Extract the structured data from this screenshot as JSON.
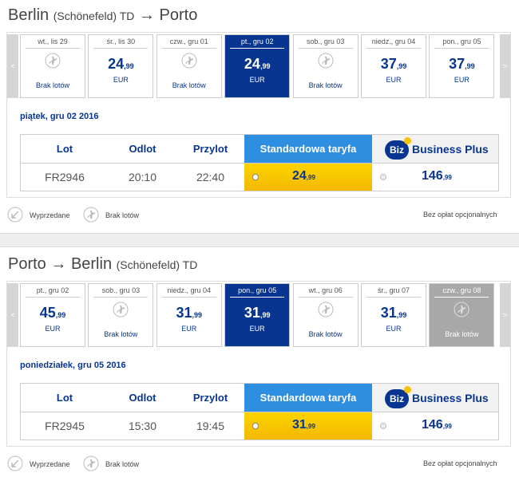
{
  "sections": [
    {
      "title": [
        {
          "text": "Berlin"
        },
        {
          "text": "(Schönefeld) TD",
          "small": true
        },
        {
          "text": "→"
        },
        {
          "text": "Porto"
        }
      ],
      "prev": "<",
      "next": ">",
      "days": [
        {
          "label": "wt., lis 29",
          "status": "Brak lotów"
        },
        {
          "label": "śr., lis 30",
          "price": "24",
          "cents": ",99",
          "currency": "EUR"
        },
        {
          "label": "czw., gru 01",
          "status": "Brak lotów"
        },
        {
          "label": "pt., gru 02",
          "price": "24",
          "cents": ",99",
          "currency": "EUR",
          "selected": true
        },
        {
          "label": "sob., gru 03",
          "status": "Brak lotów"
        },
        {
          "label": "niedz., gru 04",
          "price": "37",
          "cents": ",99",
          "currency": "EUR"
        },
        {
          "label": "pon., gru 05",
          "price": "37",
          "cents": ",99",
          "currency": "EUR"
        }
      ],
      "date": "piątek, gru 02 2016",
      "table": {
        "headers": [
          "Lot",
          "Odlot",
          "Przylot",
          "Standardowa taryfa"
        ],
        "business": {
          "badge": "Biz",
          "label": "Business Plus"
        },
        "row": {
          "flight": "FR2946",
          "departure": "20:10",
          "arrival": "22:40",
          "standard": {
            "price": "24",
            "cents": ",99"
          },
          "business": {
            "price": "146",
            "cents": ",99"
          }
        }
      },
      "legend": {
        "sold_out": "Wyprzedane",
        "no_flights": "Brak lotów",
        "note": "Bez opłat opcjonalnych"
      }
    },
    {
      "title": [
        {
          "text": "Porto"
        },
        {
          "text": "→"
        },
        {
          "text": "Berlin"
        },
        {
          "text": "(Schönefeld) TD",
          "small": true
        }
      ],
      "prev": "<",
      "next": ">",
      "days": [
        {
          "label": "pt., gru 02",
          "price": "45",
          "cents": ",99",
          "currency": "EUR"
        },
        {
          "label": "sob., gru 03",
          "status": "Brak lotów"
        },
        {
          "label": "niedz., gru 04",
          "price": "31",
          "cents": ",99",
          "currency": "EUR"
        },
        {
          "label": "pon., gru 05",
          "price": "31",
          "cents": ",99",
          "currency": "EUR",
          "selected": true
        },
        {
          "label": "wt., gru 06",
          "status": "Brak lotów"
        },
        {
          "label": "śr., gru 07",
          "price": "31",
          "cents": ",99",
          "currency": "EUR"
        },
        {
          "label": "czw., gru 08",
          "status": "Brak lotów",
          "disabled": true
        }
      ],
      "date": "poniedziałek, gru 05 2016",
      "table": {
        "headers": [
          "Lot",
          "Odlot",
          "Przylot",
          "Standardowa taryfa"
        ],
        "business": {
          "badge": "Biz",
          "label": "Business Plus"
        },
        "row": {
          "flight": "FR2945",
          "departure": "15:30",
          "arrival": "19:45",
          "standard": {
            "price": "31",
            "cents": ",99"
          },
          "business": {
            "price": "146",
            "cents": ",99"
          }
        }
      },
      "legend": {
        "sold_out": "Wyprzedane",
        "no_flights": "Brak lotów",
        "note": "Bez opłat opcjonalnych"
      }
    }
  ]
}
